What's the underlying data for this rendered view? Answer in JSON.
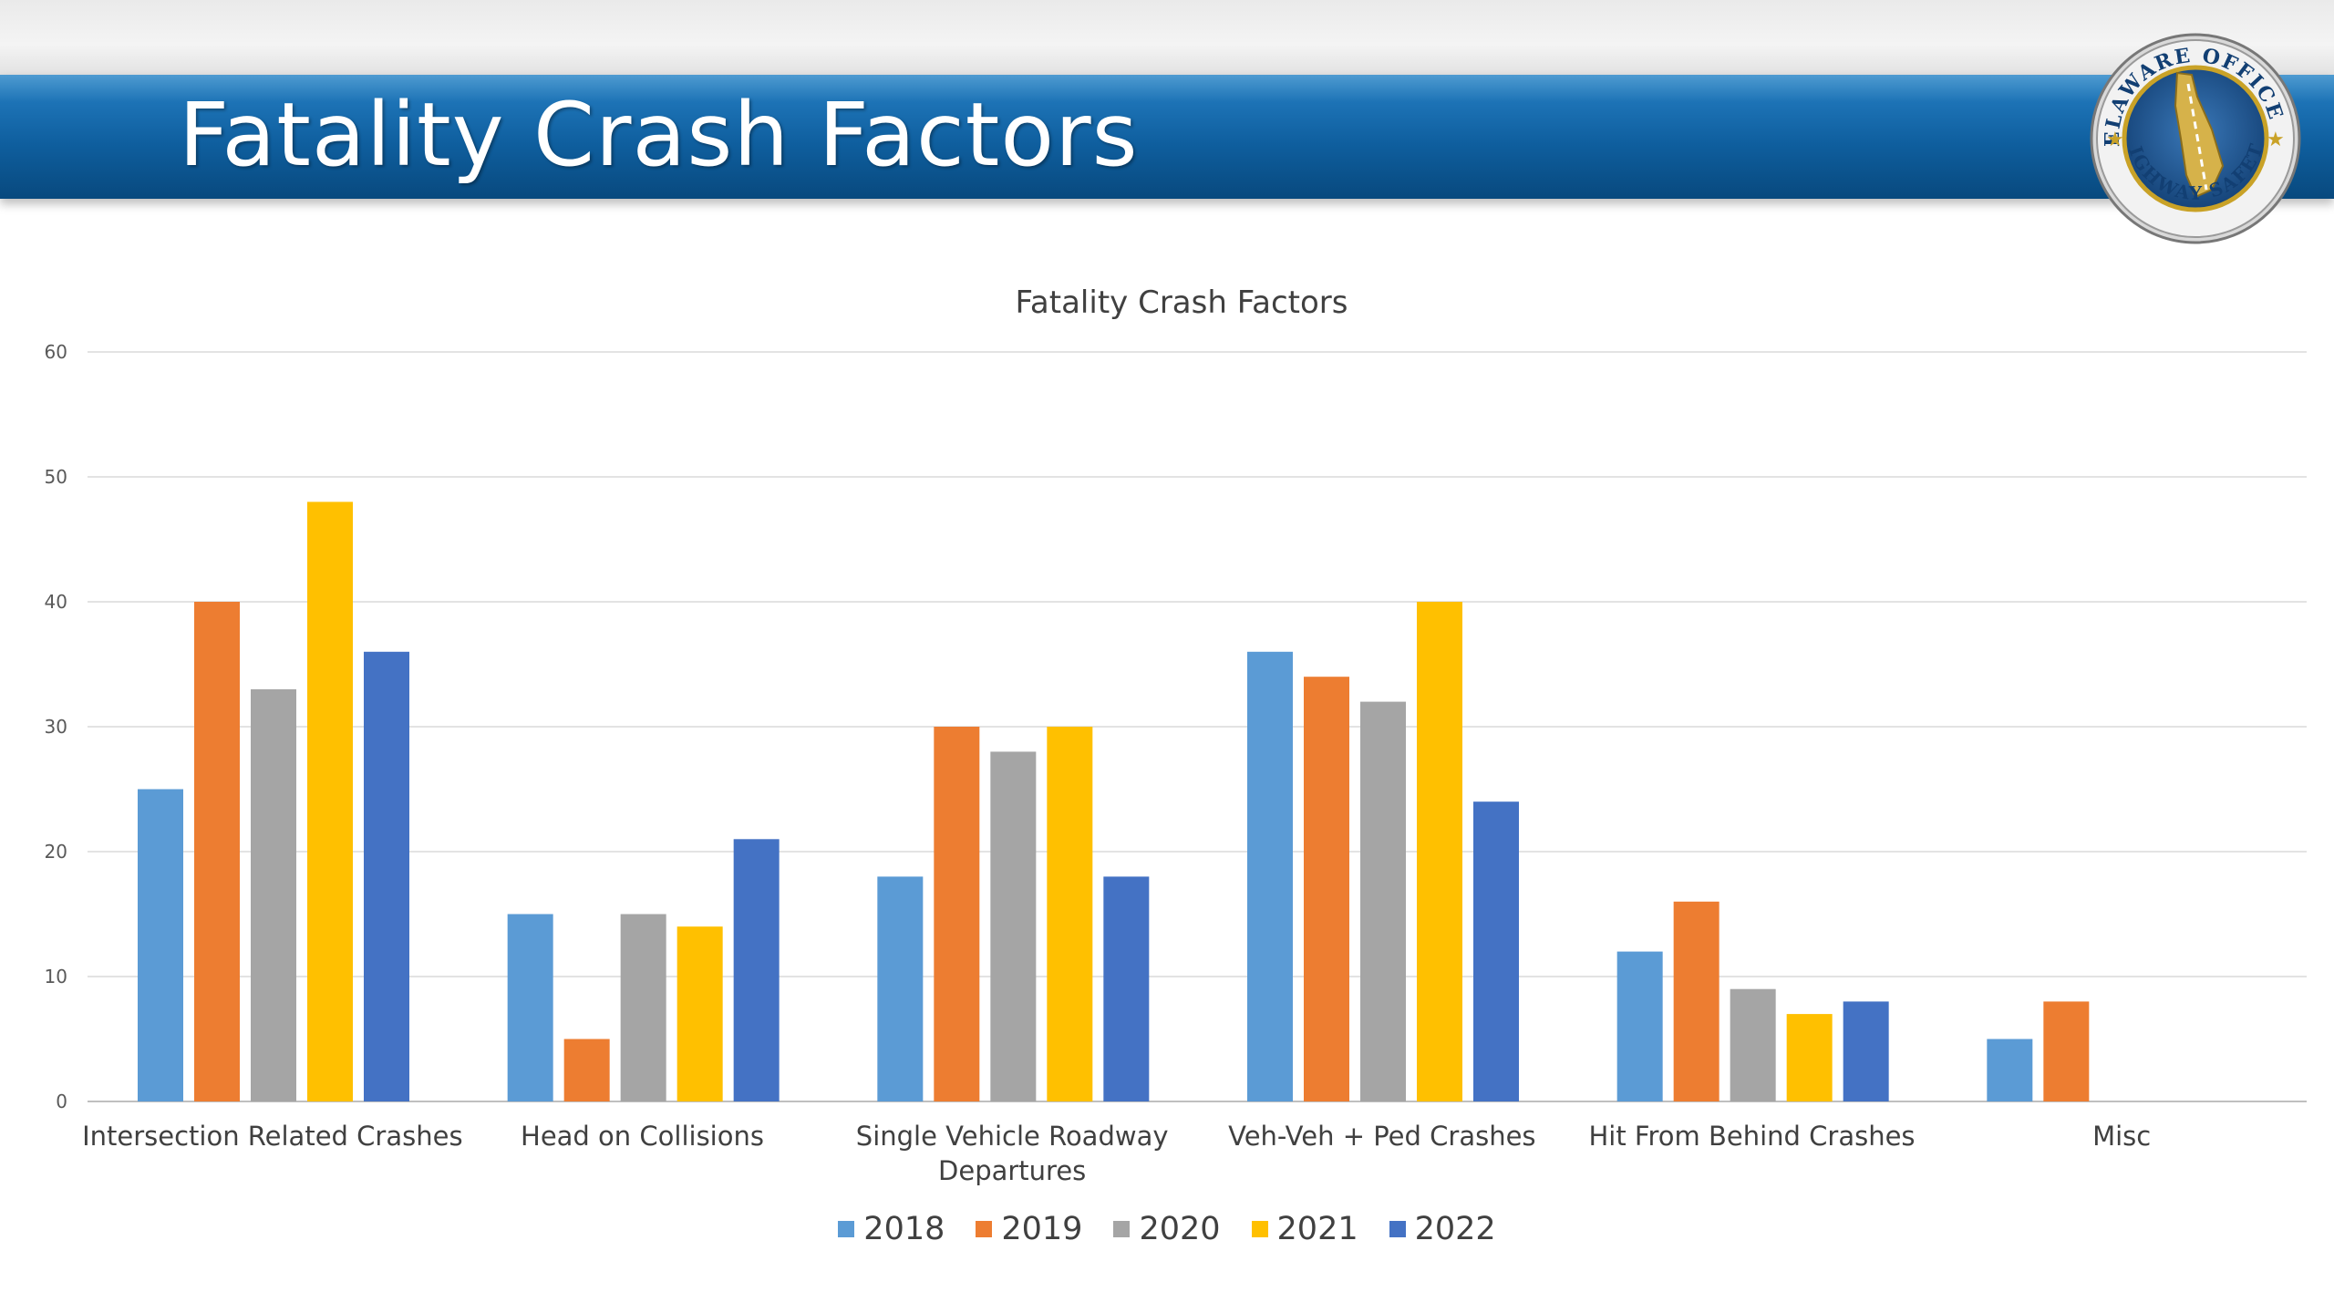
{
  "slide": {
    "title": "Fatality Crash Factors"
  },
  "seal": {
    "text": "DELAWARE OFFICE OF HIGHWAY SAFETY"
  },
  "colors": {
    "banner": "#0f5f9f",
    "s2018": "#5b9bd5",
    "s2019": "#ed7d31",
    "s2020": "#a5a5a5",
    "s2021": "#ffc000",
    "s2022": "#4472c4"
  },
  "chart_data": {
    "type": "bar",
    "title": "Fatality Crash Factors",
    "xlabel": "",
    "ylabel": "",
    "ylim": [
      0,
      60
    ],
    "yticks": [
      0,
      10,
      20,
      30,
      40,
      50,
      60
    ],
    "grid": true,
    "legend_position": "bottom",
    "categories": [
      "Intersection Related Crashes",
      "Head on Collisions",
      "Single Vehicle Roadway Departures",
      "Veh-Veh + Ped Crashes",
      "Hit From Behind Crashes",
      "Misc"
    ],
    "series": [
      {
        "name": "2018",
        "color": "#5b9bd5",
        "values": [
          25,
          15,
          18,
          36,
          12,
          5
        ]
      },
      {
        "name": "2019",
        "color": "#ed7d31",
        "values": [
          40,
          5,
          30,
          34,
          16,
          8
        ]
      },
      {
        "name": "2020",
        "color": "#a5a5a5",
        "values": [
          33,
          15,
          28,
          32,
          9,
          null
        ]
      },
      {
        "name": "2021",
        "color": "#ffc000",
        "values": [
          48,
          14,
          30,
          40,
          7,
          null
        ]
      },
      {
        "name": "2022",
        "color": "#4472c4",
        "values": [
          36,
          21,
          18,
          24,
          8,
          null
        ]
      }
    ]
  }
}
